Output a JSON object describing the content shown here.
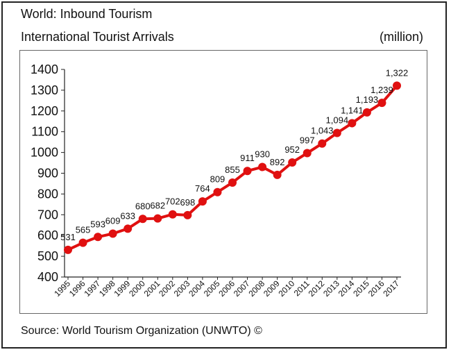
{
  "header": {
    "title": "World: Inbound Tourism",
    "subtitle": "International Tourist Arrivals",
    "unit": "(million)"
  },
  "footer": {
    "source": "Source: World Tourism Organization (UNWTO) ©"
  },
  "chart_data": {
    "type": "line",
    "title": "World: Inbound Tourism",
    "subtitle": "International Tourist Arrivals",
    "xlabel": "",
    "ylabel": "(million)",
    "categories": [
      "1995",
      "1996",
      "1997",
      "1998",
      "1999",
      "2000",
      "2001",
      "2002",
      "2003",
      "2004",
      "2005",
      "2006",
      "2007",
      "2008",
      "2009",
      "2010",
      "2011",
      "2012",
      "2013",
      "2014",
      "2015",
      "2016",
      "2017"
    ],
    "series": [
      {
        "values": [
          531,
          565,
          593,
          609,
          633,
          680,
          682,
          702,
          698,
          764,
          809,
          855,
          911,
          930,
          892,
          952,
          997,
          1043,
          1094,
          1141,
          1193,
          1239,
          1322
        ],
        "labels": [
          "531",
          "565",
          "593",
          "609",
          "633",
          "680",
          "682",
          "702",
          "698",
          "764",
          "809",
          "855",
          "911",
          "930",
          "892",
          "952",
          "997",
          "1,043",
          "1,094",
          "1,141",
          "1,193",
          "1,239",
          "1,322"
        ]
      }
    ],
    "ylim": [
      400,
      1400
    ],
    "yticks": [
      400,
      500,
      600,
      700,
      800,
      900,
      1000,
      1100,
      1200,
      1300,
      1400
    ],
    "grid": false,
    "colors": {
      "line": "#e01010",
      "marker": "#e01010",
      "text": "#111111"
    }
  }
}
